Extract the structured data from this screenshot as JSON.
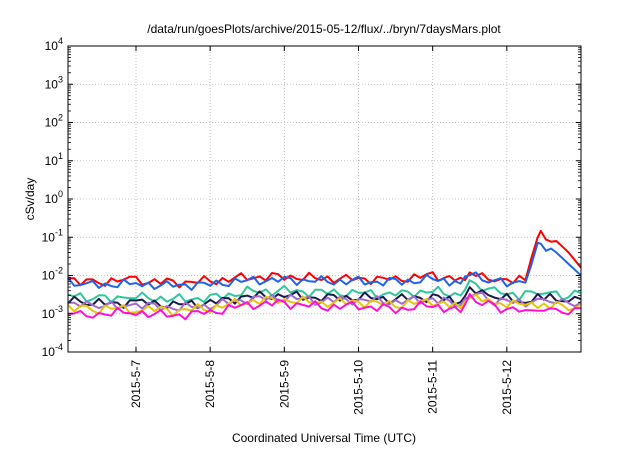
{
  "chart_data": {
    "type": "line",
    "title": "/data/run/goesPlots/archive/2015-05-12/flux/../bryn/7daysMars.plot",
    "xlabel": "Coordinated Universal Time (UTC)",
    "ylabel": "cSv/day",
    "yscale": "log",
    "ylim": [
      0.0001,
      10000
    ],
    "xlim": [
      "2015-05-06T02:00",
      "2015-05-13T00:00"
    ],
    "grid": true,
    "legend": "none",
    "ytick_labels": [
      {
        "base": "10",
        "exp": "-4",
        "value": 0.0001
      },
      {
        "base": "10",
        "exp": "-3",
        "value": 0.001
      },
      {
        "base": "10",
        "exp": "-2",
        "value": 0.01
      },
      {
        "base": "10",
        "exp": "-1",
        "value": 0.1
      },
      {
        "base": "10",
        "exp": "0",
        "value": 1
      },
      {
        "base": "10",
        "exp": "1",
        "value": 10
      },
      {
        "base": "10",
        "exp": "2",
        "value": 100
      },
      {
        "base": "10",
        "exp": "3",
        "value": 1000
      },
      {
        "base": "10",
        "exp": "4",
        "value": 10000
      }
    ],
    "xtick_labels": [
      "2015-5-7",
      "2015-5-8",
      "2015-5-9",
      "2015-5-10",
      "2015-5-11",
      "2015-5-12"
    ],
    "series": [
      {
        "color": "#ff0000",
        "values": [
          [
            "2015-05-06T02:00",
            0.0085
          ],
          [
            "2015-05-06T10:00",
            0.0068
          ],
          [
            "2015-05-07T00:00",
            0.0075
          ],
          [
            "2015-05-07T12:00",
            0.0065
          ],
          [
            "2015-05-08T00:00",
            0.0072
          ],
          [
            "2015-05-08T12:00",
            0.009
          ],
          [
            "2015-05-09T00:00",
            0.0095
          ],
          [
            "2015-05-09T12:00",
            0.0085
          ],
          [
            "2015-05-10T00:00",
            0.0082
          ],
          [
            "2015-05-10T12:00",
            0.008
          ],
          [
            "2015-05-11T00:00",
            0.01
          ],
          [
            "2015-05-11T09:00",
            0.008
          ],
          [
            "2015-05-11T12:00",
            0.013
          ],
          [
            "2015-05-11T20:00",
            0.0085
          ],
          [
            "2015-05-12T06:00",
            0.0075
          ],
          [
            "2015-05-12T08:00",
            0.03
          ],
          [
            "2015-05-12T10:00",
            0.09
          ],
          [
            "2015-05-12T11:00",
            0.12
          ],
          [
            "2015-05-12T16:00",
            0.08
          ],
          [
            "2015-05-12T20:00",
            0.04
          ],
          [
            "2015-05-13T00:00",
            0.016
          ]
        ]
      },
      {
        "color": "#1e64e6",
        "values": [
          [
            "2015-05-06T02:00",
            0.0065
          ],
          [
            "2015-05-06T10:00",
            0.0058
          ],
          [
            "2015-05-07T00:00",
            0.006
          ],
          [
            "2015-05-07T12:00",
            0.0055
          ],
          [
            "2015-05-08T00:00",
            0.006
          ],
          [
            "2015-05-08T12:00",
            0.0075
          ],
          [
            "2015-05-09T00:00",
            0.0078
          ],
          [
            "2015-05-09T12:00",
            0.0072
          ],
          [
            "2015-05-10T00:00",
            0.007
          ],
          [
            "2015-05-10T12:00",
            0.0068
          ],
          [
            "2015-05-11T00:00",
            0.008
          ],
          [
            "2015-05-11T09:00",
            0.0068
          ],
          [
            "2015-05-11T12:00",
            0.011
          ],
          [
            "2015-05-11T20:00",
            0.0072
          ],
          [
            "2015-05-12T06:00",
            0.0065
          ],
          [
            "2015-05-12T08:00",
            0.02
          ],
          [
            "2015-05-12T10:00",
            0.055
          ],
          [
            "2015-05-12T11:00",
            0.06
          ],
          [
            "2015-05-12T16:00",
            0.04
          ],
          [
            "2015-05-12T20:00",
            0.02
          ],
          [
            "2015-05-13T00:00",
            0.01
          ]
        ]
      },
      {
        "color": "#2ec79b",
        "values": [
          [
            "2015-05-06T02:00",
            0.003
          ],
          [
            "2015-05-06T10:00",
            0.0026
          ],
          [
            "2015-05-07T00:00",
            0.0028
          ],
          [
            "2015-05-07T12:00",
            0.0024
          ],
          [
            "2015-05-08T00:00",
            0.0026
          ],
          [
            "2015-05-08T12:00",
            0.0038
          ],
          [
            "2015-05-09T00:00",
            0.004
          ],
          [
            "2015-05-09T12:00",
            0.0036
          ],
          [
            "2015-05-10T00:00",
            0.0035
          ],
          [
            "2015-05-10T12:00",
            0.0033
          ],
          [
            "2015-05-11T00:00",
            0.004
          ],
          [
            "2015-05-11T09:00",
            0.003
          ],
          [
            "2015-05-11T12:00",
            0.006
          ],
          [
            "2015-05-11T20:00",
            0.0036
          ],
          [
            "2015-05-12T06:00",
            0.003
          ],
          [
            "2015-05-12T08:00",
            0.0034
          ],
          [
            "2015-05-12T12:00",
            0.0035
          ],
          [
            "2015-05-12T20:00",
            0.003
          ],
          [
            "2015-05-13T00:00",
            0.0034
          ]
        ]
      },
      {
        "color": "#1a1a4a",
        "values": [
          [
            "2015-05-06T02:00",
            0.0022
          ],
          [
            "2015-05-06T10:00",
            0.0018
          ],
          [
            "2015-05-07T00:00",
            0.002
          ],
          [
            "2015-05-07T12:00",
            0.0017
          ],
          [
            "2015-05-08T00:00",
            0.0019
          ],
          [
            "2015-05-08T12:00",
            0.0028
          ],
          [
            "2015-05-09T00:00",
            0.003
          ],
          [
            "2015-05-09T12:00",
            0.0026
          ],
          [
            "2015-05-10T00:00",
            0.0027
          ],
          [
            "2015-05-10T12:00",
            0.0024
          ],
          [
            "2015-05-11T00:00",
            0.0028
          ],
          [
            "2015-05-11T09:00",
            0.002
          ],
          [
            "2015-05-11T12:00",
            0.0042
          ],
          [
            "2015-05-11T20:00",
            0.0026
          ],
          [
            "2015-05-12T06:00",
            0.0022
          ],
          [
            "2015-05-12T08:00",
            0.0025
          ],
          [
            "2015-05-12T12:00",
            0.0026
          ],
          [
            "2015-05-12T20:00",
            0.002
          ],
          [
            "2015-05-13T00:00",
            0.0024
          ]
        ]
      },
      {
        "color": "#a06ad0",
        "values": [
          [
            "2015-05-06T02:00",
            0.0019
          ],
          [
            "2015-05-06T10:00",
            0.0015
          ],
          [
            "2015-05-07T00:00",
            0.0017
          ],
          [
            "2015-05-07T12:00",
            0.0014
          ],
          [
            "2015-05-08T00:00",
            0.0016
          ],
          [
            "2015-05-08T12:00",
            0.0024
          ],
          [
            "2015-05-09T00:00",
            0.0026
          ],
          [
            "2015-05-09T12:00",
            0.0022
          ],
          [
            "2015-05-10T00:00",
            0.0023
          ],
          [
            "2015-05-10T12:00",
            0.002
          ],
          [
            "2015-05-11T00:00",
            0.0024
          ],
          [
            "2015-05-11T09:00",
            0.0017
          ],
          [
            "2015-05-11T12:00",
            0.0036
          ],
          [
            "2015-05-11T20:00",
            0.0022
          ],
          [
            "2015-05-12T06:00",
            0.0019
          ],
          [
            "2015-05-12T08:00",
            0.0021
          ],
          [
            "2015-05-12T12:00",
            0.0022
          ],
          [
            "2015-05-12T20:00",
            0.0017
          ],
          [
            "2015-05-13T00:00",
            0.002
          ]
        ]
      },
      {
        "color": "#e6c40a",
        "values": [
          [
            "2015-05-06T02:00",
            0.0016
          ],
          [
            "2015-05-06T10:00",
            0.0013
          ],
          [
            "2015-05-07T00:00",
            0.0014
          ],
          [
            "2015-05-07T12:00",
            0.0012
          ],
          [
            "2015-05-08T00:00",
            0.0014
          ],
          [
            "2015-05-08T12:00",
            0.0021
          ],
          [
            "2015-05-09T00:00",
            0.0023
          ],
          [
            "2015-05-09T12:00",
            0.0019
          ],
          [
            "2015-05-10T00:00",
            0.002
          ],
          [
            "2015-05-10T12:00",
            0.0017
          ],
          [
            "2015-05-11T00:00",
            0.0021
          ],
          [
            "2015-05-11T09:00",
            0.0014
          ],
          [
            "2015-05-11T12:00",
            0.0032
          ],
          [
            "2015-05-11T20:00",
            0.0019
          ],
          [
            "2015-05-12T06:00",
            0.0016
          ],
          [
            "2015-05-12T08:00",
            0.0018
          ],
          [
            "2015-05-12T12:00",
            0.0019
          ],
          [
            "2015-05-12T20:00",
            0.0015
          ],
          [
            "2015-05-13T00:00",
            0.0018
          ]
        ]
      },
      {
        "color": "#ff10d8",
        "values": [
          [
            "2015-05-06T02:00",
            0.0012
          ],
          [
            "2015-05-06T10:00",
            0.001
          ],
          [
            "2015-05-07T00:00",
            0.0011
          ],
          [
            "2015-05-07T12:00",
            0.0009
          ],
          [
            "2015-05-08T00:00",
            0.0011
          ],
          [
            "2015-05-08T12:00",
            0.0017
          ],
          [
            "2015-05-09T00:00",
            0.0019
          ],
          [
            "2015-05-09T12:00",
            0.0015
          ],
          [
            "2015-05-10T00:00",
            0.0016
          ],
          [
            "2015-05-10T12:00",
            0.0013
          ],
          [
            "2015-05-11T00:00",
            0.0017
          ],
          [
            "2015-05-11T09:00",
            0.0011
          ],
          [
            "2015-05-11T12:00",
            0.0028
          ],
          [
            "2015-05-11T20:00",
            0.0015
          ],
          [
            "2015-05-12T06:00",
            0.0012
          ],
          [
            "2015-05-12T08:00",
            0.0014
          ],
          [
            "2015-05-12T12:00",
            0.0015
          ],
          [
            "2015-05-12T20:00",
            0.0012
          ],
          [
            "2015-05-13T00:00",
            0.0014
          ]
        ]
      }
    ]
  }
}
